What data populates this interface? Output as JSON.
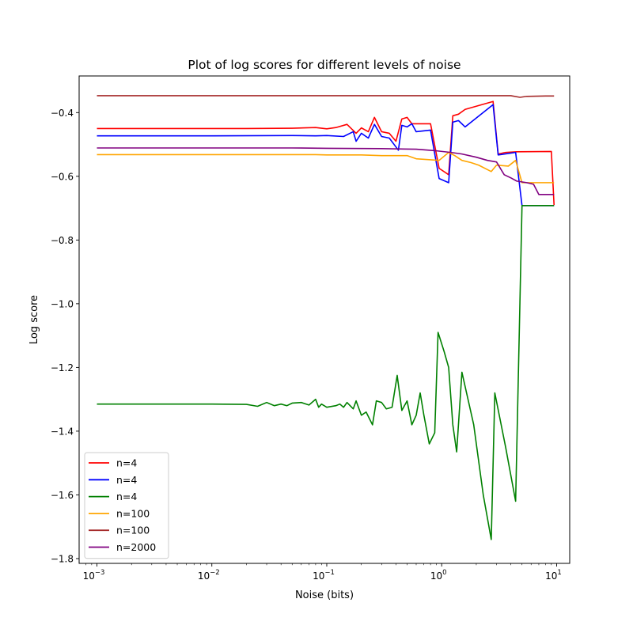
{
  "chart_data": {
    "type": "line",
    "title": "Plot of log scores for different levels of noise",
    "xlabel": "Noise (bits)",
    "ylabel": "Log score",
    "xscale": "log",
    "xlim": [
      0.0007,
      13
    ],
    "ylim": [
      -1.815,
      -0.285
    ],
    "x_ticks": [
      {
        "value": 0.001,
        "base": "10",
        "exp": "−3"
      },
      {
        "value": 0.01,
        "base": "10",
        "exp": "−2"
      },
      {
        "value": 0.1,
        "base": "10",
        "exp": "−1"
      },
      {
        "value": 1,
        "base": "10",
        "exp": "0"
      },
      {
        "value": 10,
        "base": "10",
        "exp": "1"
      }
    ],
    "y_ticks": [
      {
        "value": -1.8,
        "label": "−1.8"
      },
      {
        "value": -1.6,
        "label": "−1.6"
      },
      {
        "value": -1.4,
        "label": "−1.4"
      },
      {
        "value": -1.2,
        "label": "−1.2"
      },
      {
        "value": -1.0,
        "label": "−1.0"
      },
      {
        "value": -0.8,
        "label": "−0.8"
      },
      {
        "value": -0.6,
        "label": "−0.6"
      },
      {
        "value": -0.4,
        "label": "−0.4"
      }
    ],
    "grid": false,
    "legend_position": "lower-left",
    "series": [
      {
        "name": "n=4",
        "color": "#ff0000",
        "points": [
          [
            0.001,
            -0.45
          ],
          [
            0.005,
            -0.45
          ],
          [
            0.02,
            -0.45
          ],
          [
            0.05,
            -0.449
          ],
          [
            0.08,
            -0.447
          ],
          [
            0.1,
            -0.451
          ],
          [
            0.12,
            -0.447
          ],
          [
            0.15,
            -0.437
          ],
          [
            0.18,
            -0.465
          ],
          [
            0.2,
            -0.448
          ],
          [
            0.23,
            -0.46
          ],
          [
            0.26,
            -0.415
          ],
          [
            0.3,
            -0.46
          ],
          [
            0.35,
            -0.465
          ],
          [
            0.4,
            -0.49
          ],
          [
            0.45,
            -0.42
          ],
          [
            0.5,
            -0.415
          ],
          [
            0.55,
            -0.435
          ],
          [
            0.7,
            -0.435
          ],
          [
            0.8,
            -0.435
          ],
          [
            0.95,
            -0.575
          ],
          [
            1.15,
            -0.595
          ],
          [
            1.25,
            -0.41
          ],
          [
            1.4,
            -0.405
          ],
          [
            1.6,
            -0.39
          ],
          [
            2.0,
            -0.38
          ],
          [
            2.8,
            -0.365
          ],
          [
            3.1,
            -0.53
          ],
          [
            3.6,
            -0.525
          ],
          [
            4.5,
            -0.523
          ],
          [
            9.0,
            -0.522
          ],
          [
            9.5,
            -0.69
          ]
        ]
      },
      {
        "name": "n=4",
        "color": "#0000ff",
        "points": [
          [
            0.001,
            -0.473
          ],
          [
            0.01,
            -0.473
          ],
          [
            0.05,
            -0.472
          ],
          [
            0.08,
            -0.473
          ],
          [
            0.1,
            -0.472
          ],
          [
            0.14,
            -0.475
          ],
          [
            0.17,
            -0.46
          ],
          [
            0.18,
            -0.49
          ],
          [
            0.2,
            -0.465
          ],
          [
            0.23,
            -0.48
          ],
          [
            0.26,
            -0.437
          ],
          [
            0.3,
            -0.475
          ],
          [
            0.35,
            -0.48
          ],
          [
            0.42,
            -0.518
          ],
          [
            0.45,
            -0.44
          ],
          [
            0.5,
            -0.445
          ],
          [
            0.55,
            -0.435
          ],
          [
            0.6,
            -0.46
          ],
          [
            0.8,
            -0.455
          ],
          [
            0.95,
            -0.607
          ],
          [
            1.15,
            -0.62
          ],
          [
            1.25,
            -0.43
          ],
          [
            1.4,
            -0.425
          ],
          [
            1.6,
            -0.445
          ],
          [
            2.8,
            -0.375
          ],
          [
            3.1,
            -0.533
          ],
          [
            4.4,
            -0.525
          ],
          [
            5.0,
            -0.692
          ],
          [
            9.5,
            -0.692
          ]
        ]
      },
      {
        "name": "n=4",
        "color": "#008000",
        "points": [
          [
            0.001,
            -1.315
          ],
          [
            0.01,
            -1.315
          ],
          [
            0.02,
            -1.316
          ],
          [
            0.025,
            -1.322
          ],
          [
            0.03,
            -1.31
          ],
          [
            0.035,
            -1.32
          ],
          [
            0.04,
            -1.315
          ],
          [
            0.045,
            -1.32
          ],
          [
            0.05,
            -1.312
          ],
          [
            0.06,
            -1.31
          ],
          [
            0.07,
            -1.318
          ],
          [
            0.08,
            -1.3
          ],
          [
            0.085,
            -1.325
          ],
          [
            0.09,
            -1.315
          ],
          [
            0.1,
            -1.325
          ],
          [
            0.12,
            -1.32
          ],
          [
            0.13,
            -1.315
          ],
          [
            0.14,
            -1.325
          ],
          [
            0.15,
            -1.31
          ],
          [
            0.17,
            -1.33
          ],
          [
            0.18,
            -1.305
          ],
          [
            0.2,
            -1.35
          ],
          [
            0.22,
            -1.34
          ],
          [
            0.25,
            -1.38
          ],
          [
            0.27,
            -1.305
          ],
          [
            0.3,
            -1.31
          ],
          [
            0.33,
            -1.33
          ],
          [
            0.37,
            -1.325
          ],
          [
            0.41,
            -1.225
          ],
          [
            0.45,
            -1.335
          ],
          [
            0.5,
            -1.305
          ],
          [
            0.55,
            -1.38
          ],
          [
            0.6,
            -1.35
          ],
          [
            0.65,
            -1.28
          ],
          [
            0.7,
            -1.35
          ],
          [
            0.78,
            -1.44
          ],
          [
            0.87,
            -1.405
          ],
          [
            0.93,
            -1.09
          ],
          [
            1.05,
            -1.15
          ],
          [
            1.15,
            -1.2
          ],
          [
            1.25,
            -1.38
          ],
          [
            1.35,
            -1.465
          ],
          [
            1.5,
            -1.215
          ],
          [
            1.9,
            -1.38
          ],
          [
            2.3,
            -1.6
          ],
          [
            2.7,
            -1.74
          ],
          [
            2.9,
            -1.28
          ],
          [
            3.6,
            -1.45
          ],
          [
            4.4,
            -1.62
          ],
          [
            5.0,
            -0.692
          ],
          [
            9.5,
            -0.692
          ]
        ]
      },
      {
        "name": "n=100",
        "color": "#ffa500",
        "points": [
          [
            0.001,
            -0.532
          ],
          [
            0.05,
            -0.532
          ],
          [
            0.08,
            -0.532
          ],
          [
            0.1,
            -0.533
          ],
          [
            0.2,
            -0.533
          ],
          [
            0.3,
            -0.535
          ],
          [
            0.4,
            -0.535
          ],
          [
            0.5,
            -0.535
          ],
          [
            0.6,
            -0.545
          ],
          [
            0.8,
            -0.548
          ],
          [
            0.95,
            -0.55
          ],
          [
            1.15,
            -0.525
          ],
          [
            1.3,
            -0.535
          ],
          [
            1.5,
            -0.55
          ],
          [
            1.8,
            -0.557
          ],
          [
            2.1,
            -0.565
          ],
          [
            2.7,
            -0.585
          ],
          [
            3.0,
            -0.565
          ],
          [
            3.8,
            -0.568
          ],
          [
            4.4,
            -0.55
          ],
          [
            5.0,
            -0.62
          ],
          [
            9.5,
            -0.62
          ]
        ]
      },
      {
        "name": "n=100",
        "color": "#a52a2a",
        "points": [
          [
            0.001,
            -0.347
          ],
          [
            0.01,
            -0.347
          ],
          [
            0.1,
            -0.347
          ],
          [
            1.0,
            -0.347
          ],
          [
            4.0,
            -0.347
          ],
          [
            4.8,
            -0.352
          ],
          [
            5.5,
            -0.349
          ],
          [
            8.0,
            -0.348
          ],
          [
            9.5,
            -0.348
          ]
        ]
      },
      {
        "name": "n=2000",
        "color": "#800080",
        "points": [
          [
            0.001,
            -0.511
          ],
          [
            0.05,
            -0.511
          ],
          [
            0.1,
            -0.512
          ],
          [
            0.3,
            -0.513
          ],
          [
            0.6,
            -0.515
          ],
          [
            0.9,
            -0.52
          ],
          [
            1.2,
            -0.525
          ],
          [
            1.5,
            -0.53
          ],
          [
            2.0,
            -0.54
          ],
          [
            2.5,
            -0.55
          ],
          [
            3.0,
            -0.555
          ],
          [
            3.5,
            -0.595
          ],
          [
            4.0,
            -0.605
          ],
          [
            4.5,
            -0.615
          ],
          [
            5.5,
            -0.62
          ],
          [
            6.3,
            -0.625
          ],
          [
            7.0,
            -0.657
          ],
          [
            9.5,
            -0.657
          ]
        ]
      }
    ]
  }
}
